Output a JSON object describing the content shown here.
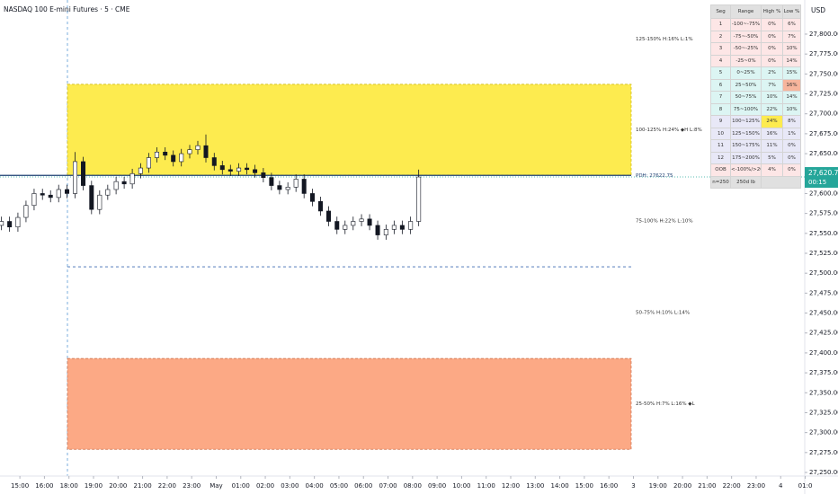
{
  "chart_data": {
    "type": "candlestick",
    "title": "NASDAQ 100 E-mini Futures · 5 · CME",
    "currency": "USD",
    "x": [
      -0.75,
      -0.42,
      -0.08,
      0.25,
      0.58,
      0.92,
      1.25,
      1.58,
      1.92,
      2.25,
      2.58,
      2.92,
      3.25,
      3.58,
      3.92,
      4.25,
      4.58,
      4.92,
      5.25,
      5.58,
      5.92,
      6.25,
      6.58,
      6.92,
      7.25,
      7.58,
      7.92,
      8.25,
      8.58,
      8.92,
      9.25,
      9.58,
      9.92,
      10.25,
      10.58,
      10.92,
      11.25,
      11.58,
      11.92,
      12.25,
      12.58,
      12.92,
      13.25,
      13.58,
      13.92,
      14.25,
      14.58,
      14.92,
      15.25,
      15.58,
      15.92,
      16.25
    ],
    "open": [
      27560,
      27565,
      27558,
      27570,
      27585,
      27600,
      27598,
      27595,
      27605,
      27600,
      27640,
      27610,
      27580,
      27598,
      27605,
      27615,
      27612,
      27625,
      27632,
      27645,
      27652,
      27648,
      27640,
      27650,
      27655,
      27660,
      27645,
      27635,
      27630,
      27628,
      27632,
      27630,
      27626,
      27620,
      27610,
      27605,
      27608,
      27618,
      27600,
      27590,
      27578,
      27565,
      27555,
      27560,
      27565,
      27568,
      27560,
      27548,
      27555,
      27560,
      27555,
      27565
    ],
    "high": [
      27571,
      27571,
      27576,
      27591,
      27606,
      27606,
      27604,
      27611,
      27611,
      27652,
      27646,
      27616,
      27604,
      27611,
      27621,
      27621,
      27631,
      27638,
      27651,
      27658,
      27658,
      27654,
      27656,
      27661,
      27666,
      27674,
      27651,
      27641,
      27636,
      27638,
      27638,
      27636,
      27632,
      27626,
      27616,
      27614,
      27624,
      27624,
      27606,
      27596,
      27584,
      27571,
      27566,
      27571,
      27574,
      27574,
      27566,
      27561,
      27566,
      27566,
      27571,
      27630
    ],
    "low": [
      27554,
      27552,
      27552,
      27564,
      27579,
      27592,
      27589,
      27589,
      27594,
      27594,
      27604,
      27574,
      27574,
      27592,
      27599,
      27606,
      27606,
      27619,
      27626,
      27639,
      27642,
      27634,
      27634,
      27644,
      27649,
      27639,
      27629,
      27624,
      27622,
      27622,
      27624,
      27620,
      27614,
      27604,
      27599,
      27599,
      27602,
      27594,
      27584,
      27572,
      27559,
      27549,
      27549,
      27554,
      27559,
      27554,
      27542,
      27542,
      27549,
      27549,
      27549,
      27559
    ],
    "close": [
      27565,
      27558,
      27570,
      27585,
      27600,
      27598,
      27595,
      27605,
      27600,
      27640,
      27610,
      27580,
      27598,
      27605,
      27615,
      27612,
      27625,
      27632,
      27645,
      27652,
      27648,
      27640,
      27650,
      27655,
      27660,
      27645,
      27635,
      27630,
      27628,
      27632,
      27630,
      27626,
      27620,
      27610,
      27605,
      27608,
      27618,
      27600,
      27590,
      27578,
      27565,
      27555,
      27560,
      27565,
      27568,
      27560,
      27548,
      27555,
      27560,
      27555,
      27565,
      27620.75
    ],
    "up_color": "#ffffff",
    "down_color": "#131722",
    "xlim": [
      -0.81,
      31.98
    ],
    "ylim": [
      27245.5,
      27842.8
    ],
    "xticks": [
      {
        "value": 0,
        "label": "15:00"
      },
      {
        "value": 1,
        "label": "16:00"
      },
      {
        "value": 2,
        "label": "18:00"
      },
      {
        "value": 3,
        "label": "19:00"
      },
      {
        "value": 4,
        "label": "20:00"
      },
      {
        "value": 5,
        "label": "21:00"
      },
      {
        "value": 6,
        "label": "22:00"
      },
      {
        "value": 7,
        "label": "23:00"
      },
      {
        "value": 8,
        "label": "May"
      },
      {
        "value": 9,
        "label": "01:00"
      },
      {
        "value": 10,
        "label": "02:00"
      },
      {
        "value": 11,
        "label": "03:00"
      },
      {
        "value": 12,
        "label": "04:00"
      },
      {
        "value": 13,
        "label": "05:00"
      },
      {
        "value": 14,
        "label": "06:00"
      },
      {
        "value": 15,
        "label": "07:00"
      },
      {
        "value": 16,
        "label": "08:00"
      },
      {
        "value": 17,
        "label": "09:00"
      },
      {
        "value": 18,
        "label": "10:00"
      },
      {
        "value": 19,
        "label": "11:00"
      },
      {
        "value": 20,
        "label": "12:00"
      },
      {
        "value": 21,
        "label": "13:00"
      },
      {
        "value": 22,
        "label": "14:00"
      },
      {
        "value": 23,
        "label": "15:00"
      },
      {
        "value": 24,
        "label": "16:00"
      },
      {
        "value": 25,
        "label": "3"
      },
      {
        "value": 26,
        "label": "19:00"
      },
      {
        "value": 27,
        "label": "20:00"
      },
      {
        "value": 28,
        "label": "21:00"
      },
      {
        "value": 29,
        "label": "22:00"
      },
      {
        "value": 30,
        "label": "23:00"
      },
      {
        "value": 31,
        "label": "4"
      },
      {
        "value": 32,
        "label": "01:0"
      }
    ],
    "yticks": [
      {
        "value": 27250,
        "label": "27,250.00"
      },
      {
        "value": 27275,
        "label": "27,275.00"
      },
      {
        "value": 27300,
        "label": "27,300.00"
      },
      {
        "value": 27325,
        "label": "27,325.00"
      },
      {
        "value": 27350,
        "label": "27,350.00"
      },
      {
        "value": 27375,
        "label": "27,375.00"
      },
      {
        "value": 27400,
        "label": "27,400.00"
      },
      {
        "value": 27425,
        "label": "27,425.00"
      },
      {
        "value": 27450,
        "label": "27,450.00"
      },
      {
        "value": 27475,
        "label": "27,475.00"
      },
      {
        "value": 27500,
        "label": "27,500.00"
      },
      {
        "value": 27525,
        "label": "27,525.00"
      },
      {
        "value": 27550,
        "label": "27,550.00"
      },
      {
        "value": 27575,
        "label": "27,575.00"
      },
      {
        "value": 27600,
        "label": "27,600.00"
      },
      {
        "value": 27625,
        "label": "27,625.00"
      },
      {
        "value": 27650,
        "label": "27,650.00"
      },
      {
        "value": 27675,
        "label": "27,675.00"
      },
      {
        "value": 27700,
        "label": "27,700.00"
      },
      {
        "value": 27725,
        "label": "27,725.00"
      },
      {
        "value": 27750,
        "label": "27,750.00"
      },
      {
        "value": 27775,
        "label": "27,775.00"
      },
      {
        "value": 27800,
        "label": "27,800.00"
      }
    ],
    "zones": [
      {
        "label": "125-150%  H:16%  L:1%",
        "low": 27737,
        "high": 27851
      },
      {
        "label": "100-125%  H:24% ◆H  L:8%",
        "low": 27623,
        "high": 27737,
        "color": "#fdeb4f"
      },
      {
        "label": "75-100%  H:22%  L:10%",
        "low": 27508,
        "high": 27623
      },
      {
        "label": "50-75%  H:10%  L:14%",
        "low": 27393,
        "high": 27508
      },
      {
        "label": "25-50%  H:7%  L:16% ◆L",
        "low": 27279,
        "high": 27393,
        "color": "#fca985"
      }
    ],
    "levels": [
      27508
    ],
    "pdh": {
      "value": 27622.75,
      "label": "PDH: 27622.75"
    },
    "last_price": {
      "value": 27620.75,
      "label": "27,620.75",
      "countdown": "00:15",
      "color": "#26a69a"
    }
  },
  "table": {
    "header": [
      "Seg",
      "Range",
      "High %",
      "Low %"
    ],
    "rows": [
      [
        "1",
        "-100~-75%",
        "0%",
        "6%"
      ],
      [
        "2",
        "-75~-50%",
        "0%",
        "7%"
      ],
      [
        "3",
        "-50~-25%",
        "0%",
        "10%"
      ],
      [
        "4",
        "-25~0%",
        "0%",
        "14%"
      ],
      [
        "5",
        "0~25%",
        "2%",
        "15%"
      ],
      [
        "6",
        "25~50%",
        "7%",
        "16%"
      ],
      [
        "7",
        "50~75%",
        "10%",
        "14%"
      ],
      [
        "8",
        "75~100%",
        "22%",
        "10%"
      ],
      [
        "9",
        "100~125%",
        "24%",
        "8%"
      ],
      [
        "10",
        "125~150%",
        "16%",
        "1%"
      ],
      [
        "11",
        "150~175%",
        "11%",
        "0%"
      ],
      [
        "12",
        "175~200%",
        "5%",
        "0%"
      ],
      [
        "OOB",
        "<-100%/>200%",
        "4%",
        "0%"
      ]
    ],
    "footer": [
      "n=250",
      "250d lb"
    ]
  }
}
